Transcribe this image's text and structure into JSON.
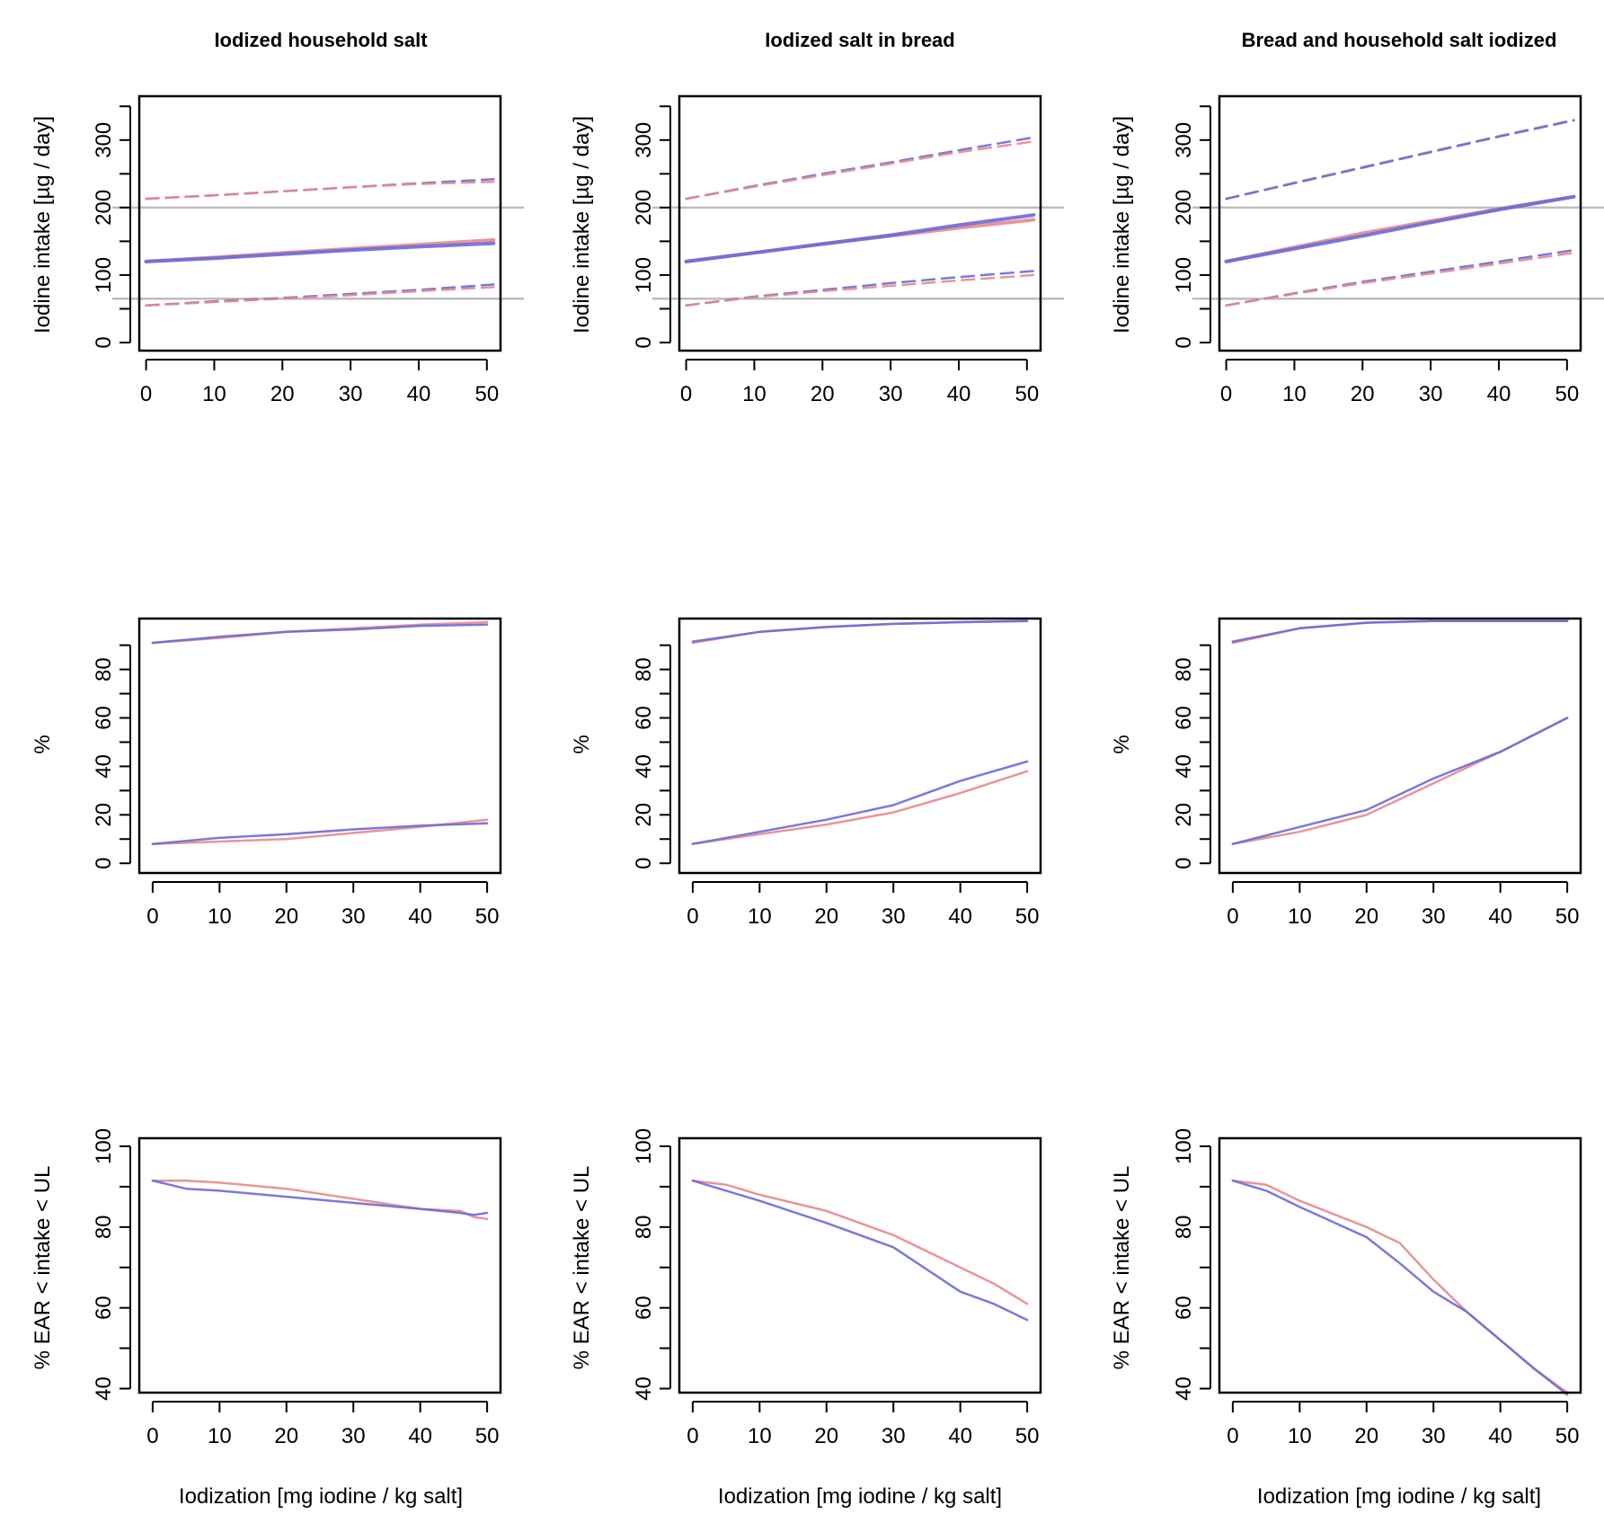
{
  "colors": {
    "red_series": "#e8888d",
    "blue_series": "#6a6ad8",
    "purple_series": "#8b4a94",
    "reference_line": "#bdbdbd"
  },
  "column_titles": [
    "Iodized household salt",
    "Iodized salt in bread",
    "Bread and household salt iodized"
  ],
  "xlabel": "Iodization [mg iodine / kg salt]",
  "row_ylabels": [
    "Iodine intake [µg / day]",
    "%",
    "% EAR < intake < UL"
  ],
  "chart_data": [
    {
      "type": "line",
      "row": 0,
      "col": 0,
      "title": "Iodized household salt",
      "ylabel": "Iodine intake [µg / day]",
      "xlabel": "",
      "xlim": [
        -1,
        52
      ],
      "ylim": [
        -12,
        365
      ],
      "xticks": [
        0,
        10,
        20,
        30,
        40,
        50
      ],
      "yticks": [
        0,
        100,
        200,
        300
      ],
      "hlines": [
        200,
        65
      ],
      "series": [
        {
          "name": "upper",
          "color": "blue",
          "dash": true,
          "x": [
            0,
            10,
            20,
            30,
            40,
            51
          ],
          "y": [
            213,
            218,
            224,
            230,
            236,
            242
          ]
        },
        {
          "name": "upper",
          "color": "red",
          "dash": true,
          "x": [
            0,
            10,
            20,
            30,
            40,
            51
          ],
          "y": [
            213,
            218,
            224,
            230,
            235,
            238
          ]
        },
        {
          "name": "median",
          "color": "red",
          "x": [
            0,
            10,
            20,
            30,
            40,
            51
          ],
          "y": [
            120,
            126,
            133,
            139,
            145,
            152
          ]
        },
        {
          "name": "median",
          "color": "blue",
          "x": [
            0,
            10,
            20,
            30,
            40,
            51
          ],
          "y": [
            120,
            125,
            131,
            137,
            142,
            147
          ]
        },
        {
          "name": "lower",
          "color": "blue",
          "dash": true,
          "x": [
            0,
            10,
            20,
            30,
            40,
            51
          ],
          "y": [
            55,
            61,
            66,
            72,
            78,
            86
          ]
        },
        {
          "name": "lower",
          "color": "red",
          "dash": true,
          "x": [
            0,
            10,
            20,
            30,
            40,
            51
          ],
          "y": [
            55,
            60,
            65,
            70,
            76,
            82
          ]
        }
      ]
    },
    {
      "type": "line",
      "row": 0,
      "col": 1,
      "title": "Iodized salt in bread",
      "ylabel": "Iodine intake [µg / day]",
      "xlabel": "",
      "xlim": [
        -1,
        52
      ],
      "ylim": [
        -12,
        365
      ],
      "xticks": [
        0,
        10,
        20,
        30,
        40,
        50
      ],
      "yticks": [
        0,
        100,
        200,
        300
      ],
      "hlines": [
        200,
        65
      ],
      "series": [
        {
          "name": "upper",
          "color": "blue",
          "dash": true,
          "x": [
            0,
            10,
            20,
            30,
            40,
            51
          ],
          "y": [
            213,
            232,
            250,
            267,
            285,
            304
          ]
        },
        {
          "name": "upper",
          "color": "red",
          "dash": true,
          "x": [
            0,
            10,
            20,
            30,
            40,
            51
          ],
          "y": [
            213,
            231,
            248,
            265,
            282,
            298
          ]
        },
        {
          "name": "median",
          "color": "red",
          "x": [
            0,
            10,
            20,
            30,
            40,
            51
          ],
          "y": [
            120,
            133,
            146,
            158,
            170,
            182
          ]
        },
        {
          "name": "median",
          "color": "blue",
          "x": [
            0,
            10,
            20,
            30,
            40,
            51
          ],
          "y": [
            120,
            133,
            146,
            159,
            174,
            189
          ]
        },
        {
          "name": "lower",
          "color": "blue",
          "dash": true,
          "x": [
            0,
            10,
            20,
            30,
            40,
            51
          ],
          "y": [
            55,
            68,
            78,
            88,
            97,
            106
          ]
        },
        {
          "name": "lower",
          "color": "red",
          "dash": true,
          "x": [
            0,
            10,
            20,
            30,
            40,
            51
          ],
          "y": [
            55,
            67,
            76,
            84,
            92,
            100
          ]
        }
      ]
    },
    {
      "type": "line",
      "row": 0,
      "col": 2,
      "title": "Bread and household salt iodized",
      "ylabel": "Iodine intake [µg / day]",
      "xlabel": "",
      "xlim": [
        -1,
        52
      ],
      "ylim": [
        -12,
        365
      ],
      "xticks": [
        0,
        10,
        20,
        30,
        40,
        50
      ],
      "yticks": [
        0,
        100,
        200,
        300
      ],
      "hlines": [
        200,
        65
      ],
      "series": [
        {
          "name": "upper",
          "color": "red",
          "dash": true,
          "x": [
            0,
            10,
            20,
            30,
            40,
            51
          ],
          "y": [
            213,
            237,
            260,
            283,
            306,
            330
          ]
        },
        {
          "name": "upper",
          "color": "blue",
          "dash": true,
          "x": [
            0,
            10,
            20,
            30,
            40,
            51
          ],
          "y": [
            213,
            236,
            259,
            282,
            305,
            329
          ]
        },
        {
          "name": "median",
          "color": "red",
          "x": [
            0,
            10,
            20,
            30,
            40,
            51
          ],
          "y": [
            120,
            141,
            162,
            180,
            198,
            216
          ]
        },
        {
          "name": "median",
          "color": "blue",
          "x": [
            0,
            10,
            20,
            30,
            40,
            51
          ],
          "y": [
            120,
            139,
            158,
            178,
            197,
            216
          ]
        },
        {
          "name": "lower",
          "color": "blue",
          "dash": true,
          "x": [
            0,
            10,
            20,
            30,
            40,
            51
          ],
          "y": [
            55,
            73,
            90,
            105,
            120,
            137
          ]
        },
        {
          "name": "lower",
          "color": "red",
          "dash": true,
          "x": [
            0,
            10,
            20,
            30,
            40,
            51
          ],
          "y": [
            55,
            72,
            88,
            102,
            117,
            133
          ]
        }
      ]
    },
    {
      "type": "line",
      "row": 1,
      "col": 0,
      "title": "",
      "ylabel": "%",
      "xlabel": "",
      "xlim": [
        -2,
        52
      ],
      "ylim": [
        -4,
        101
      ],
      "xticks": [
        0,
        10,
        20,
        30,
        40,
        50
      ],
      "yticks": [
        0,
        20,
        40,
        60,
        80
      ],
      "hlines": [],
      "series": [
        {
          "name": "upper",
          "color": "red",
          "x": [
            0,
            10,
            20,
            30,
            40,
            50
          ],
          "y": [
            91,
            93,
            95.5,
            97,
            98.5,
            99.5
          ]
        },
        {
          "name": "upper",
          "color": "blue",
          "x": [
            0,
            10,
            20,
            30,
            40,
            50
          ],
          "y": [
            91,
            93.5,
            95.5,
            96.5,
            98,
            98.5
          ]
        },
        {
          "name": "lower",
          "color": "red",
          "x": [
            0,
            10,
            20,
            30,
            40,
            50
          ],
          "y": [
            8,
            9,
            10,
            12.5,
            15,
            18
          ]
        },
        {
          "name": "lower",
          "color": "blue",
          "x": [
            0,
            10,
            20,
            30,
            40,
            50
          ],
          "y": [
            8,
            10.5,
            12,
            14,
            15.5,
            16.5
          ]
        }
      ]
    },
    {
      "type": "line",
      "row": 1,
      "col": 1,
      "title": "",
      "ylabel": "%",
      "xlabel": "",
      "xlim": [
        -2,
        52
      ],
      "ylim": [
        -4,
        101
      ],
      "xticks": [
        0,
        10,
        20,
        30,
        40,
        50
      ],
      "yticks": [
        0,
        20,
        40,
        60,
        80
      ],
      "hlines": [],
      "series": [
        {
          "name": "upper",
          "color": "red",
          "x": [
            0,
            10,
            20,
            30,
            40,
            50
          ],
          "y": [
            91,
            95.5,
            97.5,
            98.8,
            99.5,
            100
          ]
        },
        {
          "name": "upper",
          "color": "blue",
          "x": [
            0,
            10,
            20,
            30,
            40,
            50
          ],
          "y": [
            91.5,
            95.5,
            97.5,
            98.8,
            99.5,
            100
          ]
        },
        {
          "name": "lower",
          "color": "red",
          "x": [
            0,
            10,
            20,
            30,
            40,
            50
          ],
          "y": [
            8,
            12,
            16,
            21,
            29,
            38
          ]
        },
        {
          "name": "lower",
          "color": "blue",
          "x": [
            0,
            10,
            20,
            30,
            40,
            50
          ],
          "y": [
            8,
            13,
            18,
            24,
            34,
            42
          ]
        }
      ]
    },
    {
      "type": "line",
      "row": 1,
      "col": 2,
      "title": "",
      "ylabel": "%",
      "xlabel": "",
      "xlim": [
        -2,
        52
      ],
      "ylim": [
        -4,
        101
      ],
      "xticks": [
        0,
        10,
        20,
        30,
        40,
        50
      ],
      "yticks": [
        0,
        20,
        40,
        60,
        80
      ],
      "hlines": [],
      "series": [
        {
          "name": "upper",
          "color": "red",
          "x": [
            0,
            10,
            20,
            30,
            40,
            50
          ],
          "y": [
            91,
            97,
            99.3,
            100,
            100,
            100
          ]
        },
        {
          "name": "upper",
          "color": "blue",
          "x": [
            0,
            10,
            20,
            30,
            40,
            50
          ],
          "y": [
            91.5,
            97,
            99.3,
            100,
            100,
            100
          ]
        },
        {
          "name": "lower",
          "color": "red",
          "x": [
            0,
            10,
            20,
            30,
            40,
            50
          ],
          "y": [
            8,
            13,
            20,
            33,
            46,
            60
          ]
        },
        {
          "name": "lower",
          "color": "blue",
          "x": [
            0,
            10,
            20,
            30,
            40,
            50
          ],
          "y": [
            8,
            15,
            22,
            35,
            46,
            60
          ]
        }
      ]
    },
    {
      "type": "line",
      "row": 2,
      "col": 0,
      "title": "",
      "ylabel": "% EAR < intake < UL",
      "xlabel": "Iodization [mg iodine / kg salt]",
      "xlim": [
        -2,
        52
      ],
      "ylim": [
        39,
        102
      ],
      "xticks": [
        0,
        10,
        20,
        30,
        40,
        50
      ],
      "yticks": [
        40,
        60,
        80,
        100
      ],
      "hlines": [],
      "series": [
        {
          "name": "share",
          "color": "red",
          "x": [
            0,
            5,
            10,
            20,
            30,
            40,
            46,
            48,
            50
          ],
          "y": [
            91.5,
            91.5,
            91,
            89.5,
            87,
            84.5,
            84,
            82.5,
            82
          ]
        },
        {
          "name": "share",
          "color": "blue",
          "x": [
            0,
            5,
            10,
            20,
            30,
            40,
            46,
            48,
            50
          ],
          "y": [
            91.5,
            89.5,
            89,
            87.5,
            86,
            84.5,
            83.5,
            83,
            83.5
          ]
        }
      ]
    },
    {
      "type": "line",
      "row": 2,
      "col": 1,
      "title": "",
      "ylabel": "% EAR < intake < UL",
      "xlabel": "Iodization [mg iodine / kg salt]",
      "xlim": [
        -2,
        52
      ],
      "ylim": [
        39,
        102
      ],
      "xticks": [
        0,
        10,
        20,
        30,
        40,
        50
      ],
      "yticks": [
        40,
        60,
        80,
        100
      ],
      "hlines": [],
      "series": [
        {
          "name": "share",
          "color": "red",
          "x": [
            0,
            5,
            10,
            20,
            30,
            40,
            45,
            50
          ],
          "y": [
            91.5,
            90.5,
            88,
            84,
            78,
            70,
            66,
            61
          ]
        },
        {
          "name": "share",
          "color": "blue",
          "x": [
            0,
            5,
            10,
            20,
            30,
            40,
            45,
            50
          ],
          "y": [
            91.5,
            89,
            86.5,
            81,
            75,
            64,
            61,
            57
          ]
        }
      ]
    },
    {
      "type": "line",
      "row": 2,
      "col": 2,
      "title": "",
      "ylabel": "% EAR < intake < UL",
      "xlabel": "Iodization [mg iodine / kg salt]",
      "xlim": [
        -2,
        52
      ],
      "ylim": [
        39,
        102
      ],
      "xticks": [
        0,
        10,
        20,
        30,
        40,
        50
      ],
      "yticks": [
        40,
        60,
        80,
        100
      ],
      "hlines": [],
      "series": [
        {
          "name": "share",
          "color": "red",
          "x": [
            0,
            5,
            10,
            20,
            25,
            30,
            35,
            40,
            45,
            50
          ],
          "y": [
            91.5,
            90.5,
            86.5,
            80,
            76,
            67,
            59,
            52,
            45,
            39
          ]
        },
        {
          "name": "share",
          "color": "blue",
          "x": [
            0,
            5,
            10,
            20,
            25,
            30,
            35,
            40,
            45,
            50
          ],
          "y": [
            91.5,
            89,
            85,
            77.5,
            71,
            64,
            59,
            52,
            45,
            38.5
          ]
        }
      ]
    }
  ]
}
